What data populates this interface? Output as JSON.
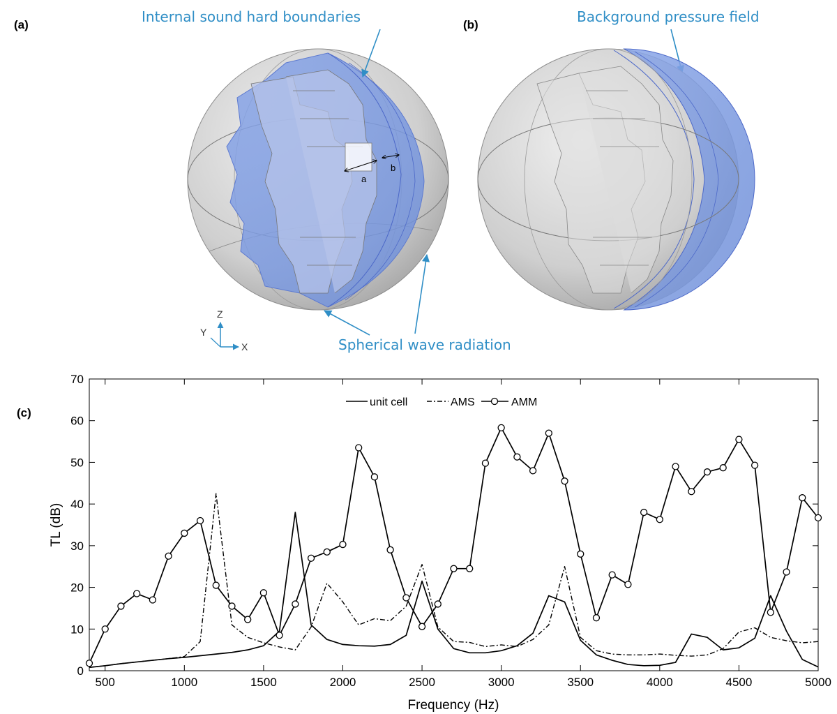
{
  "panels": {
    "a": "(a)",
    "b": "(b)",
    "c": "(c)"
  },
  "callouts": {
    "internal": "Internal sound hard boundaries",
    "background": "Background pressure field",
    "spherical": "Spherical wave radiation"
  },
  "dimension_labels": {
    "a": "a",
    "b": "b"
  },
  "axes_triad": {
    "z": "Z",
    "y": "Y",
    "x": "X"
  },
  "colors": {
    "callout": "#2f8ec6",
    "sphere_gray": "#c9c9c9",
    "region_blue": "#8ea8e6"
  },
  "chart_data": {
    "type": "line",
    "xlabel": "Frequency (Hz)",
    "ylabel": "TL (dB)",
    "xlim": [
      400,
      5000
    ],
    "ylim": [
      0,
      70
    ],
    "xticks": [
      500,
      1000,
      1500,
      2000,
      2500,
      3000,
      3500,
      4000,
      4500,
      5000
    ],
    "yticks": [
      0,
      10,
      20,
      30,
      40,
      50,
      60,
      70
    ],
    "grid": false,
    "legend": "top-center",
    "series": [
      {
        "name": "unit cell",
        "style": "solid",
        "x": [
          400,
          500,
          600,
          700,
          800,
          900,
          1000,
          1100,
          1200,
          1300,
          1400,
          1500,
          1600,
          1700,
          1800,
          1900,
          2000,
          2100,
          2200,
          2300,
          2400,
          2500,
          2600,
          2700,
          2800,
          2900,
          3000,
          3100,
          3200,
          3300,
          3400,
          3500,
          3600,
          3700,
          3800,
          3900,
          4000,
          4100,
          4200,
          4300,
          4400,
          4500,
          4600,
          4700,
          4800,
          4900,
          5000
        ],
        "y": [
          0.8,
          1.2,
          1.7,
          2.1,
          2.5,
          2.9,
          3.2,
          3.6,
          4.0,
          4.4,
          5.0,
          6.0,
          9.5,
          38.0,
          11.0,
          7.5,
          6.3,
          6.0,
          5.9,
          6.3,
          8.5,
          21.5,
          10.0,
          5.3,
          4.3,
          4.3,
          4.8,
          6.0,
          9.0,
          18.0,
          16.5,
          7.3,
          3.8,
          2.5,
          1.5,
          1.2,
          1.3,
          2.0,
          8.8,
          8.0,
          5.0,
          5.5,
          7.8,
          18.0,
          9.5,
          2.7,
          0.9
        ]
      },
      {
        "name": "AMS",
        "style": "dashdot",
        "x": [
          400,
          500,
          600,
          700,
          800,
          900,
          1000,
          1100,
          1200,
          1300,
          1400,
          1500,
          1600,
          1700,
          1800,
          1900,
          2000,
          2100,
          2200,
          2300,
          2400,
          2500,
          2600,
          2700,
          2800,
          2900,
          3000,
          3100,
          3200,
          3300,
          3400,
          3500,
          3600,
          3700,
          3800,
          3900,
          4000,
          4100,
          4200,
          4300,
          4400,
          4500,
          4600,
          4700,
          4800,
          4900,
          5000
        ],
        "y": [
          0.8,
          1.2,
          1.7,
          2.1,
          2.5,
          2.9,
          3.4,
          7.0,
          42.5,
          11.0,
          8.0,
          6.7,
          5.7,
          5.0,
          10.5,
          21.0,
          16.5,
          11.0,
          12.5,
          12.0,
          15.5,
          25.5,
          10.5,
          7.0,
          6.8,
          5.8,
          6.2,
          5.8,
          7.5,
          11.0,
          25.0,
          8.0,
          4.8,
          4.0,
          3.8,
          3.8,
          4.0,
          3.7,
          3.5,
          3.8,
          5.3,
          9.3,
          10.3,
          8.0,
          7.2,
          6.7,
          7.0
        ]
      },
      {
        "name": "AMM",
        "style": "solid-circle",
        "x": [
          400,
          500,
          600,
          700,
          800,
          900,
          1000,
          1100,
          1200,
          1300,
          1400,
          1500,
          1600,
          1700,
          1800,
          1900,
          2000,
          2100,
          2200,
          2300,
          2400,
          2500,
          2600,
          2700,
          2800,
          2900,
          3000,
          3100,
          3200,
          3300,
          3400,
          3500,
          3600,
          3700,
          3800,
          3900,
          4000,
          4100,
          4200,
          4300,
          4400,
          4500,
          4600,
          4700,
          4800,
          4900,
          5000
        ],
        "y": [
          1.8,
          10.0,
          15.5,
          18.5,
          17.0,
          27.5,
          33.0,
          36.0,
          20.5,
          15.5,
          12.3,
          18.7,
          8.5,
          16.0,
          27.0,
          28.5,
          30.3,
          53.5,
          46.5,
          29.0,
          17.5,
          10.6,
          16.0,
          24.5,
          24.5,
          49.8,
          58.3,
          51.3,
          48.0,
          57.0,
          45.5,
          28.0,
          12.7,
          23.0,
          20.7,
          38.0,
          36.3,
          49.0,
          43.0,
          47.7,
          48.7,
          55.5,
          49.3,
          14.0,
          23.7,
          41.5,
          36.7
        ]
      }
    ]
  }
}
